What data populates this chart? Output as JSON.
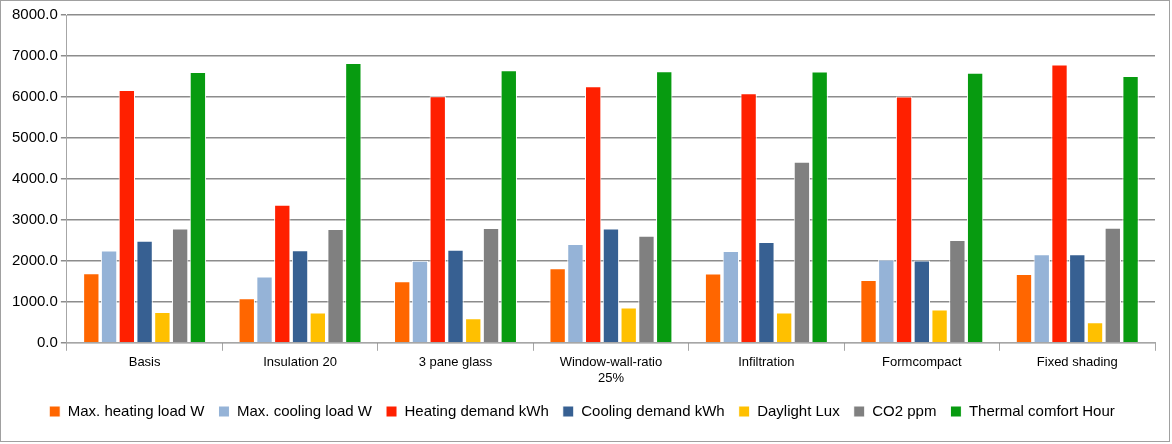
{
  "chart_data": {
    "type": "bar",
    "categories": [
      "Basis",
      "Insulation 20",
      "3 pane glass",
      "Window-wall-ratio 25%",
      "Infiltration",
      "Formcompact",
      "Fixed shading"
    ],
    "series": [
      {
        "name": "Max. heating load W",
        "color": "#ff6600",
        "values": [
          1700,
          1090,
          1500,
          1820,
          1690,
          1530,
          1680
        ]
      },
      {
        "name": "Max. cooling load W",
        "color": "#95b3d7",
        "values": [
          2250,
          1620,
          2000,
          2410,
          2240,
          2030,
          2160
        ]
      },
      {
        "name": "Heating demand kWh",
        "color": "#ff2000",
        "values": [
          6170,
          3370,
          6020,
          6260,
          6090,
          6010,
          6790
        ]
      },
      {
        "name": "Cooling demand kWh",
        "color": "#376092",
        "values": [
          2490,
          2260,
          2270,
          2790,
          2460,
          2010,
          2160
        ]
      },
      {
        "name": "Daylight Lux",
        "color": "#ffc000",
        "values": [
          750,
          740,
          600,
          860,
          740,
          810,
          500
        ]
      },
      {
        "name": "CO2 ppm",
        "color": "#808080",
        "values": [
          2790,
          2780,
          2800,
          2610,
          4420,
          2510,
          2810
        ]
      },
      {
        "name": "Thermal comfort Hour",
        "color": "#079b10",
        "values": [
          6610,
          6830,
          6650,
          6630,
          6620,
          6590,
          6510
        ]
      }
    ],
    "ylim": [
      0,
      8000
    ],
    "yticks": [
      {
        "value": 0,
        "label": "0.0"
      },
      {
        "value": 1000,
        "label": "1000.0"
      },
      {
        "value": 2000,
        "label": "2000.0"
      },
      {
        "value": 3000,
        "label": "3000.0"
      },
      {
        "value": 4000,
        "label": "4000.0"
      },
      {
        "value": 5000,
        "label": "5000.0"
      },
      {
        "value": 6000,
        "label": "6000.0"
      },
      {
        "value": 7000,
        "label": "7000.0"
      },
      {
        "value": 8000,
        "label": "8000.0"
      }
    ],
    "grid": "y",
    "legend": "bottom"
  }
}
